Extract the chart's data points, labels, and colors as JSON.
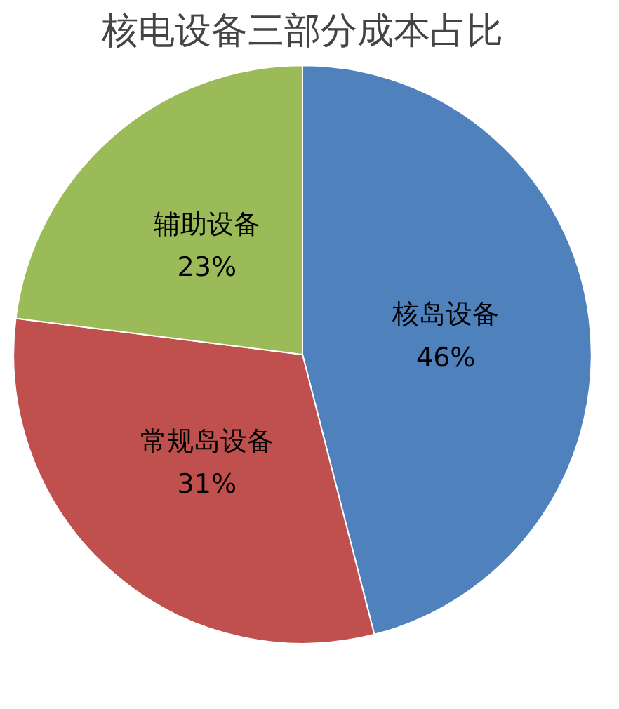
{
  "chart_data": {
    "type": "pie",
    "title": "核电设备三部分成本占比",
    "categories": [
      "核岛设备",
      "常规岛设备",
      "辅助设备"
    ],
    "values": [
      46,
      31,
      23
    ],
    "colors": [
      "#4f81bd",
      "#c0504d",
      "#9bbb59"
    ],
    "value_labels": [
      "46%",
      "31%",
      "23%"
    ],
    "legend": false
  }
}
